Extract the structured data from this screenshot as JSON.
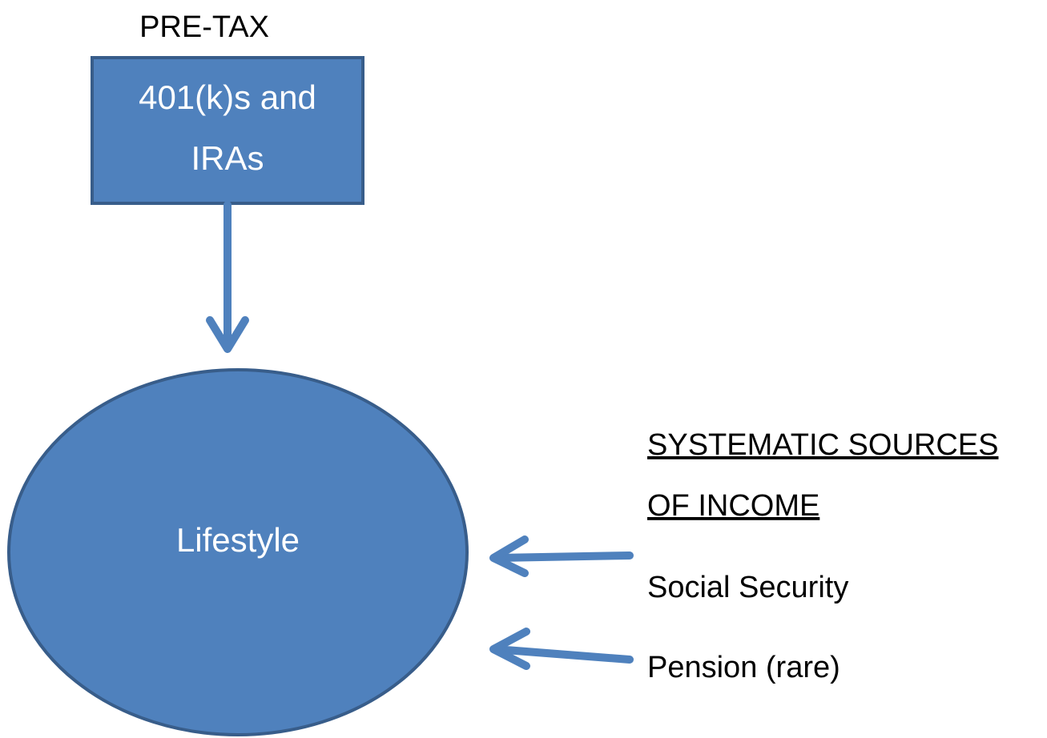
{
  "header": {
    "label": "PRE-TAX"
  },
  "box": {
    "lines": [
      "401(k)s and",
      "IRAs"
    ]
  },
  "ellipse": {
    "label": "Lifestyle"
  },
  "sources": {
    "title_lines": [
      "SYSTEMATIC SOURCES",
      "OF INCOME"
    ],
    "items": [
      "Social Security",
      "Pension (rare)"
    ]
  }
}
